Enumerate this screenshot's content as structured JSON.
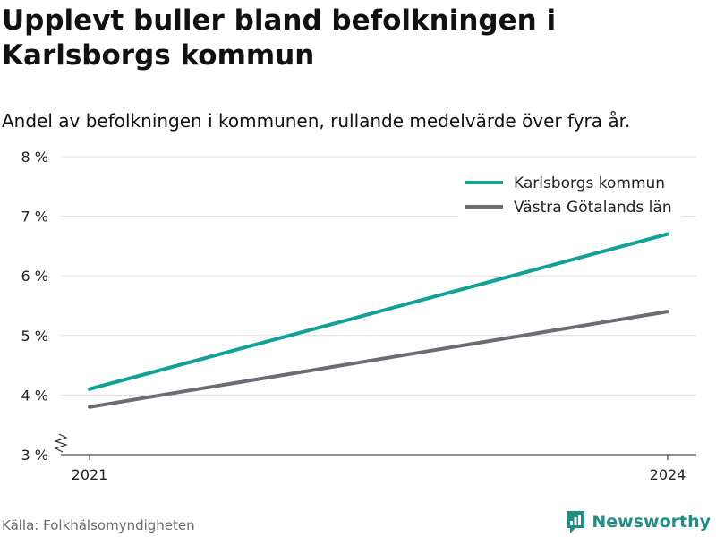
{
  "title": "Upplevt buller bland befolkningen i Karlsborgs kommun",
  "subtitle": "Andel av befolkningen i kommunen, rullande medelvärde över fyra år.",
  "source": "Källa: Folkhälsomyndigheten",
  "brand": "Newsworthy",
  "colors": {
    "karlsborg": "#12a195",
    "vastra_gotaland": "#6d6c75",
    "grid": "#dddddd",
    "axis": "#222222",
    "brand": "#1f8f86"
  },
  "chart_data": {
    "type": "line",
    "x": [
      2021,
      2024
    ],
    "x_tick_labels": [
      "2021",
      "2024"
    ],
    "ylim": [
      3,
      8
    ],
    "y_ticks": [
      3,
      4,
      5,
      6,
      7,
      8
    ],
    "y_tick_labels": [
      "3 %",
      "4 %",
      "5 %",
      "6 %",
      "7 %",
      "8 %"
    ],
    "y_axis_break": true,
    "grid": true,
    "legend_position": "top-right",
    "series": [
      {
        "name": "Karlsborgs kommun",
        "values": [
          4.1,
          6.7
        ]
      },
      {
        "name": "Västra Götalands län",
        "values": [
          3.8,
          5.4
        ]
      }
    ]
  }
}
